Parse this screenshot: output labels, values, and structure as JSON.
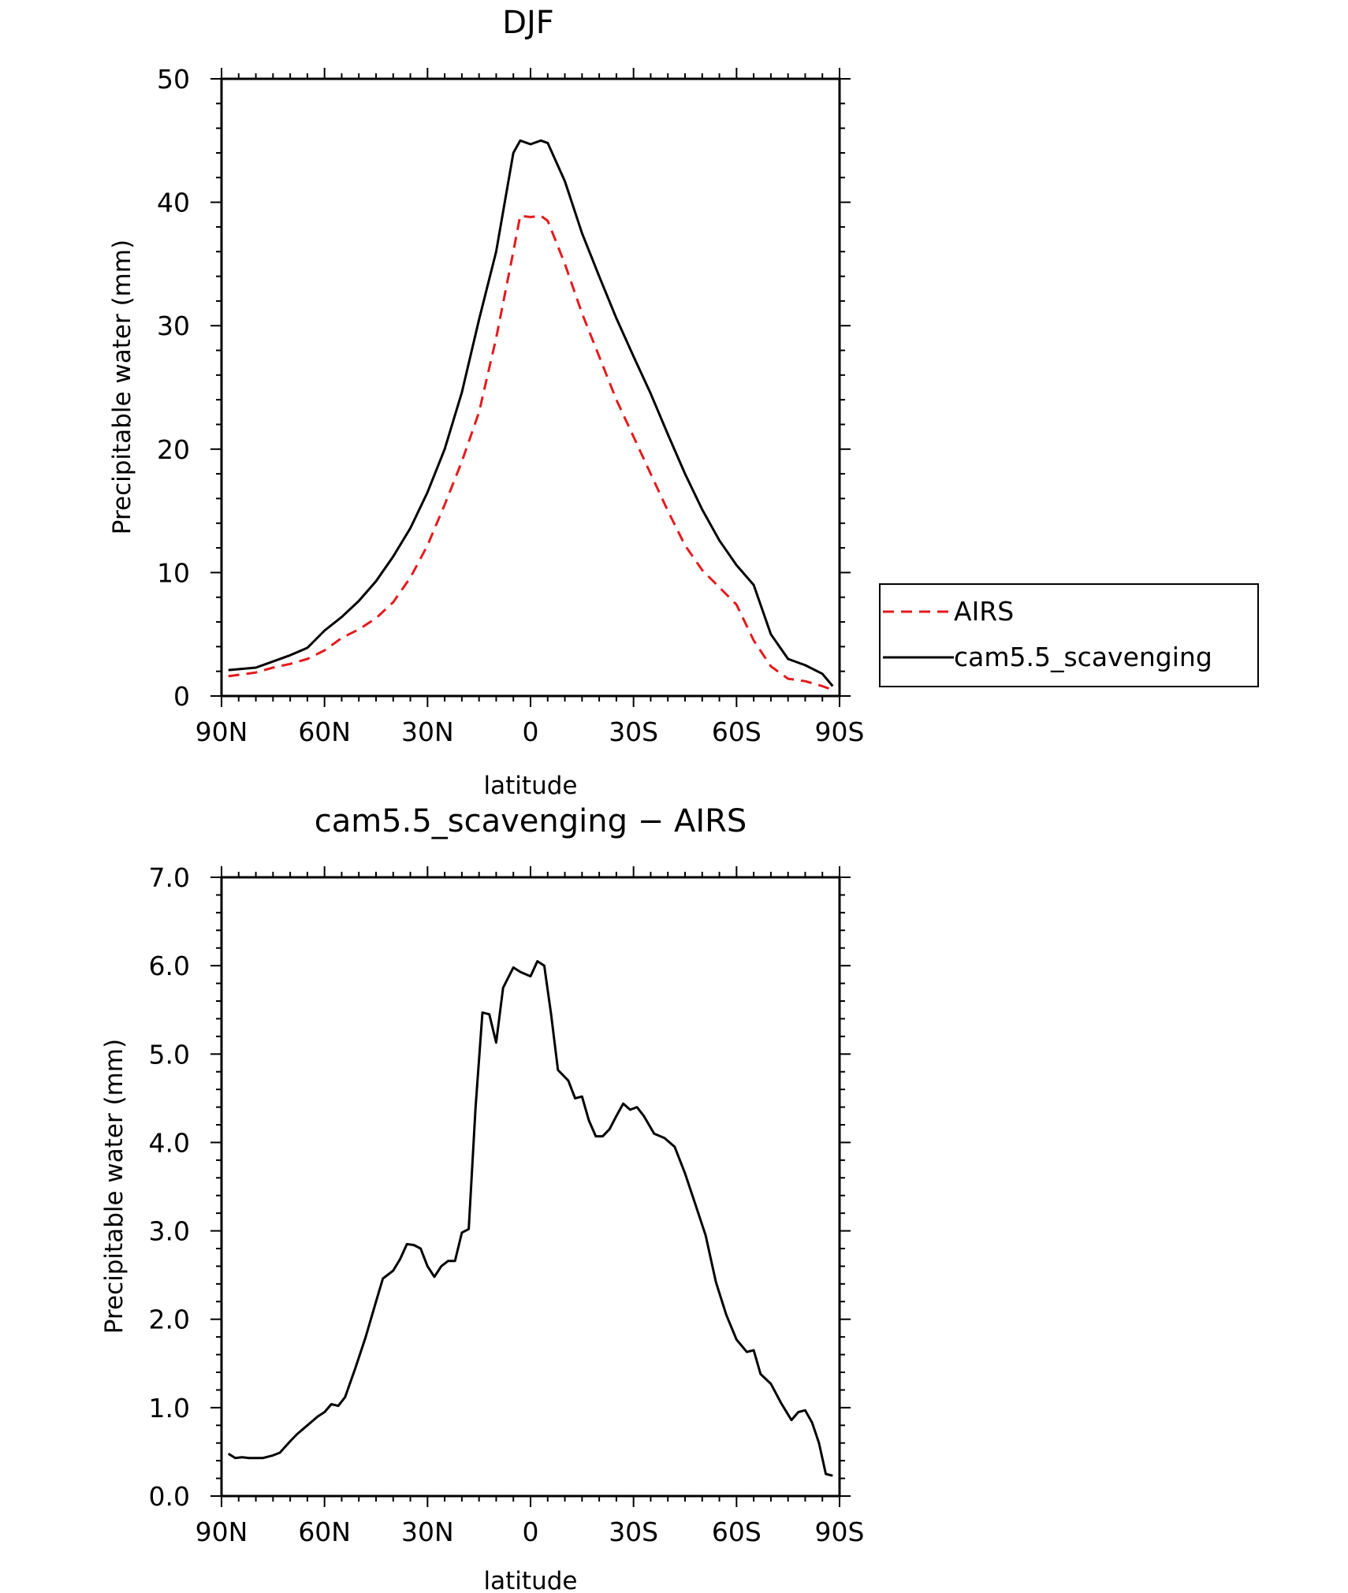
{
  "chart_data": [
    {
      "type": "line",
      "title": "DJF",
      "xlabel": "latitude",
      "ylabel": "Precipitable water (mm)",
      "xlim": [
        -90,
        90
      ],
      "ylim": [
        0,
        50
      ],
      "xticks": [
        -90,
        -60,
        -30,
        0,
        30,
        60,
        90
      ],
      "xtick_labels": [
        "90N",
        "60N",
        "30N",
        "0",
        "30S",
        "60S",
        "90S"
      ],
      "yticks": [
        0,
        10,
        20,
        30,
        40,
        50
      ],
      "ytick_labels": [
        "0",
        "10",
        "20",
        "30",
        "40",
        "50"
      ],
      "grid": false,
      "legend_position": "right",
      "series": [
        {
          "name": "AIRS",
          "color": "#e41a1c",
          "dash": "dashed",
          "x": [
            -88,
            -80,
            -75,
            -70,
            -65,
            -60,
            -55,
            -50,
            -45,
            -40,
            -35,
            -30,
            -25,
            -20,
            -15,
            -10,
            -5,
            -3,
            0,
            3,
            5,
            10,
            15,
            20,
            25,
            30,
            35,
            40,
            45,
            50,
            55,
            60,
            65,
            70,
            75,
            80,
            85,
            88
          ],
          "y": [
            1.6,
            1.9,
            2.3,
            2.6,
            3.0,
            3.7,
            4.7,
            5.4,
            6.3,
            7.6,
            9.6,
            12.2,
            15.5,
            19.0,
            23.0,
            29.0,
            36.0,
            38.9,
            38.8,
            38.9,
            38.5,
            35.0,
            31.0,
            27.5,
            24.0,
            21.0,
            18.0,
            15.0,
            12.2,
            10.2,
            8.8,
            7.4,
            4.5,
            2.4,
            1.4,
            1.2,
            0.8,
            0.5
          ]
        },
        {
          "name": "cam5.5_scavenging",
          "color": "#000000",
          "dash": "solid",
          "x": [
            -88,
            -80,
            -75,
            -70,
            -65,
            -60,
            -55,
            -50,
            -45,
            -40,
            -35,
            -30,
            -25,
            -20,
            -15,
            -10,
            -5,
            -3,
            0,
            3,
            5,
            10,
            15,
            20,
            25,
            30,
            35,
            40,
            45,
            50,
            55,
            60,
            65,
            70,
            75,
            80,
            85,
            88
          ],
          "y": [
            2.1,
            2.3,
            2.8,
            3.3,
            3.9,
            5.3,
            6.4,
            7.7,
            9.3,
            11.3,
            13.6,
            16.5,
            20.0,
            24.6,
            30.5,
            36.0,
            44.0,
            45.0,
            44.7,
            45.0,
            44.8,
            41.7,
            37.5,
            34.0,
            30.6,
            27.5,
            24.5,
            21.2,
            18.0,
            15.1,
            12.6,
            10.6,
            9.0,
            5.0,
            3.0,
            2.5,
            1.8,
            0.8
          ]
        }
      ]
    },
    {
      "type": "line",
      "title": "cam5.5_scavenging − AIRS",
      "xlabel": "latitude",
      "ylabel": "Precipitable water (mm)",
      "xlim": [
        -90,
        90
      ],
      "ylim": [
        0,
        7
      ],
      "xticks": [
        -90,
        -60,
        -30,
        0,
        30,
        60,
        90
      ],
      "xtick_labels": [
        "90N",
        "60N",
        "30N",
        "0",
        "30S",
        "60S",
        "90S"
      ],
      "yticks": [
        0,
        1,
        2,
        3,
        4,
        5,
        6,
        7
      ],
      "ytick_labels": [
        "0.0",
        "1.0",
        "2.0",
        "3.0",
        "4.0",
        "5.0",
        "6.0",
        "7.0"
      ],
      "grid": false,
      "series": [
        {
          "color": "#000000",
          "dash": "solid",
          "x": [
            -88,
            -86,
            -84,
            -82,
            -78,
            -75,
            -73,
            -70,
            -68,
            -65,
            -62,
            -60,
            -58,
            -56,
            -54,
            -51,
            -48,
            -45,
            -43,
            -40,
            -38,
            -36,
            -34,
            -32,
            -30,
            -28,
            -26,
            -24,
            -22,
            -20,
            -18,
            -16,
            -14,
            -12,
            -10,
            -8,
            -5,
            -3,
            0,
            2,
            4,
            6,
            8,
            11,
            13,
            15,
            17,
            19,
            21,
            23,
            25,
            27,
            29,
            31,
            33,
            36,
            39,
            42,
            45,
            48,
            51,
            54,
            57,
            60,
            63,
            65,
            67,
            70,
            73,
            76,
            78,
            80,
            82,
            84,
            86,
            88
          ],
          "y": [
            0.48,
            0.43,
            0.44,
            0.43,
            0.43,
            0.46,
            0.49,
            0.62,
            0.7,
            0.8,
            0.9,
            0.95,
            1.04,
            1.02,
            1.12,
            1.45,
            1.8,
            2.2,
            2.46,
            2.55,
            2.68,
            2.85,
            2.84,
            2.8,
            2.6,
            2.48,
            2.6,
            2.66,
            2.66,
            2.98,
            3.02,
            4.4,
            5.47,
            5.45,
            5.13,
            5.75,
            5.98,
            5.93,
            5.88,
            6.05,
            6.0,
            5.45,
            4.82,
            4.7,
            4.5,
            4.52,
            4.25,
            4.07,
            4.07,
            4.15,
            4.3,
            4.44,
            4.37,
            4.4,
            4.3,
            4.1,
            4.05,
            3.95,
            3.65,
            3.3,
            2.95,
            2.42,
            2.05,
            1.77,
            1.63,
            1.65,
            1.38,
            1.27,
            1.05,
            0.86,
            0.95,
            0.97,
            0.83,
            0.6,
            0.25,
            0.23
          ]
        }
      ]
    }
  ],
  "legend": {
    "items": [
      {
        "label": "AIRS",
        "color": "#e41a1c",
        "dash": "dashed"
      },
      {
        "label": "cam5.5_scavenging",
        "color": "#000000",
        "dash": "solid"
      }
    ]
  }
}
